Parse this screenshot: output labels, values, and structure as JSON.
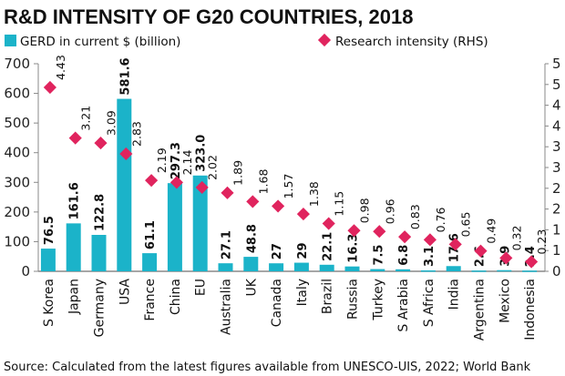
{
  "chart_data": {
    "type": "bar",
    "title": "R&D INTENSITY OF G20 COUNTRIES, 2018",
    "source": "Source: Calculated from the latest figures available from UNESCO-UIS, 2022; World Bank",
    "categories": [
      "S Korea",
      "Japan",
      "Germany",
      "USA",
      "France",
      "China",
      "EU",
      "Australia",
      "UK",
      "Canada",
      "Italy",
      "Brazil",
      "Russia",
      "Turkey",
      "S Arabia",
      "S Africa",
      "India",
      "Argentina",
      "Mexico",
      "Indonesia"
    ],
    "series": [
      {
        "name": "GERD in current $ (billion)",
        "type": "bar",
        "axis": "left",
        "color": "#1bb3c9",
        "values": [
          76.5,
          161.6,
          122.8,
          581.6,
          61.1,
          297.3,
          323.0,
          27.1,
          48.8,
          27,
          29,
          22.1,
          16.3,
          7.5,
          6.8,
          3.1,
          17.6,
          2.6,
          3.9,
          2.4
        ],
        "labels": [
          "76.5",
          "161.6",
          "122.8",
          "581.6",
          "61.1",
          "297.3",
          "323.0",
          "27.1",
          "48.8",
          "27",
          "29",
          "22.1",
          "16.3",
          "7.5",
          "6.8",
          "3.1",
          "17.6",
          "2.6",
          "3.9",
          "2.4"
        ]
      },
      {
        "name": "Research intensity (RHS)",
        "type": "scatter",
        "marker": "diamond",
        "axis": "right",
        "color": "#e0245e",
        "values": [
          4.43,
          3.21,
          3.09,
          2.83,
          2.19,
          2.14,
          2.02,
          1.89,
          1.68,
          1.57,
          1.38,
          1.15,
          0.98,
          0.96,
          0.83,
          0.76,
          0.65,
          0.49,
          0.32,
          0.23
        ],
        "labels": [
          "4.43",
          "3.21",
          "3.09",
          "2.83",
          "2.19",
          "2.14",
          "2.02",
          "1.89",
          "1.68",
          "1.57",
          "1.38",
          "1.15",
          "0.98",
          "0.96",
          "0.83",
          "0.76",
          "0.65",
          "0.49",
          "0.32",
          "0.23"
        ]
      }
    ],
    "y_left": {
      "lim": [
        0,
        700
      ],
      "ticks": [
        0,
        100,
        200,
        300,
        400,
        500,
        600,
        700
      ],
      "tick_labels": [
        "0",
        "100",
        "200",
        "300",
        "400",
        "500",
        "600",
        "700"
      ]
    },
    "y_right": {
      "lim": [
        0,
        5
      ],
      "ticks": [
        0,
        0.5,
        1,
        1.5,
        2,
        2.5,
        3,
        3.5,
        4,
        4.5,
        5
      ],
      "tick_labels": [
        "0",
        "1",
        "1",
        "2",
        "2",
        "3",
        "3",
        "4",
        "4",
        "5",
        "5"
      ]
    },
    "xlabel": "",
    "ylabel": "",
    "grid": false,
    "legend": "top"
  }
}
